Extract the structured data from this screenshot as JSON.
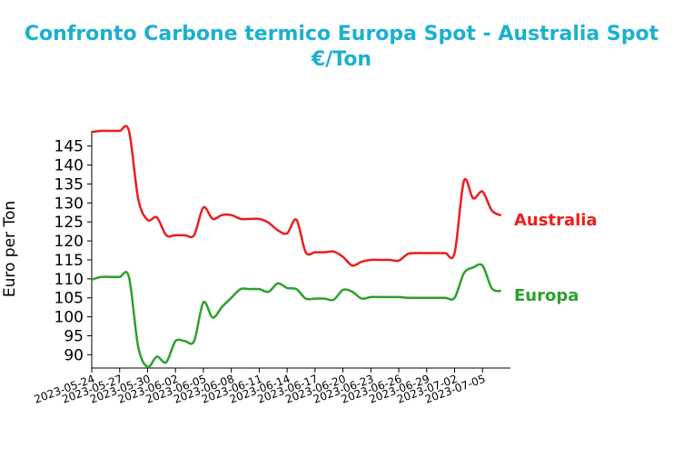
{
  "chart_data": {
    "type": "line",
    "title_line1": "Confronto Carbone termico Europa Spot - Australia Spot",
    "title_line2": "€/Ton",
    "xlabel": "",
    "ylabel": "Euro per Ton",
    "ylim": [
      86.5,
      149
    ],
    "yticks": [
      90,
      95,
      100,
      105,
      110,
      115,
      120,
      125,
      130,
      135,
      140,
      145
    ],
    "xlim": [
      "2023-05-24",
      "2023-07-08"
    ],
    "xticks": [
      "2023-05-24",
      "2023-05-27",
      "2023-05-30",
      "2023-06-02",
      "2023-06-05",
      "2023-06-08",
      "2023-06-11",
      "2023-06-14",
      "2023-06-17",
      "2023-06-20",
      "2023-06-23",
      "2023-06-26",
      "2023-06-29",
      "2023-07-02",
      "2023-07-05"
    ],
    "grid": false,
    "legend": "labels at line ends (right)",
    "series": [
      {
        "name": "Australia",
        "color": "#ee1c1c",
        "points": [
          [
            "2023-05-24",
            148.7
          ],
          [
            "2023-05-25",
            149.0
          ],
          [
            "2023-05-26",
            149.0
          ],
          [
            "2023-05-27",
            149.0
          ],
          [
            "2023-05-28",
            149.0
          ],
          [
            "2023-05-29",
            131.0
          ],
          [
            "2023-05-30",
            125.5
          ],
          [
            "2023-05-31",
            126.2
          ],
          [
            "2023-06-01",
            121.5
          ],
          [
            "2023-06-02",
            121.5
          ],
          [
            "2023-06-03",
            121.5
          ],
          [
            "2023-06-04",
            121.5
          ],
          [
            "2023-06-05",
            128.8
          ],
          [
            "2023-06-06",
            125.8
          ],
          [
            "2023-06-07",
            126.8
          ],
          [
            "2023-06-08",
            126.8
          ],
          [
            "2023-06-09",
            125.8
          ],
          [
            "2023-06-10",
            125.8
          ],
          [
            "2023-06-11",
            125.8
          ],
          [
            "2023-06-12",
            124.8
          ],
          [
            "2023-06-13",
            122.8
          ],
          [
            "2023-06-14",
            122.0
          ],
          [
            "2023-06-15",
            125.6
          ],
          [
            "2023-06-16",
            117.0
          ],
          [
            "2023-06-17",
            117.0
          ],
          [
            "2023-06-18",
            117.0
          ],
          [
            "2023-06-19",
            117.2
          ],
          [
            "2023-06-20",
            115.8
          ],
          [
            "2023-06-21",
            113.5
          ],
          [
            "2023-06-22",
            114.5
          ],
          [
            "2023-06-23",
            115.0
          ],
          [
            "2023-06-24",
            115.0
          ],
          [
            "2023-06-25",
            115.0
          ],
          [
            "2023-06-26",
            114.8
          ],
          [
            "2023-06-27",
            116.6
          ],
          [
            "2023-06-28",
            116.8
          ],
          [
            "2023-06-29",
            116.8
          ],
          [
            "2023-06-30",
            116.8
          ],
          [
            "2023-07-01",
            116.8
          ],
          [
            "2023-07-02",
            116.8
          ],
          [
            "2023-07-03",
            135.8
          ],
          [
            "2023-07-04",
            131.2
          ],
          [
            "2023-07-05",
            133.0
          ],
          [
            "2023-07-06",
            128.0
          ],
          [
            "2023-07-07",
            126.7
          ]
        ]
      },
      {
        "name": "Europa",
        "color": "#2ca02c",
        "points": [
          [
            "2023-05-24",
            109.8
          ],
          [
            "2023-05-25",
            110.5
          ],
          [
            "2023-05-26",
            110.5
          ],
          [
            "2023-05-27",
            110.5
          ],
          [
            "2023-05-28",
            110.5
          ],
          [
            "2023-05-29",
            92.0
          ],
          [
            "2023-05-30",
            86.8
          ],
          [
            "2023-05-31",
            89.5
          ],
          [
            "2023-06-01",
            88.0
          ],
          [
            "2023-06-02",
            93.6
          ],
          [
            "2023-06-03",
            93.6
          ],
          [
            "2023-06-04",
            93.6
          ],
          [
            "2023-06-05",
            103.8
          ],
          [
            "2023-06-06",
            99.8
          ],
          [
            "2023-06-07",
            102.6
          ],
          [
            "2023-06-08",
            105.0
          ],
          [
            "2023-06-09",
            107.3
          ],
          [
            "2023-06-10",
            107.3
          ],
          [
            "2023-06-11",
            107.3
          ],
          [
            "2023-06-12",
            106.6
          ],
          [
            "2023-06-13",
            108.8
          ],
          [
            "2023-06-14",
            107.6
          ],
          [
            "2023-06-15",
            107.3
          ],
          [
            "2023-06-16",
            104.8
          ],
          [
            "2023-06-17",
            104.8
          ],
          [
            "2023-06-18",
            104.8
          ],
          [
            "2023-06-19",
            104.5
          ],
          [
            "2023-06-20",
            107.1
          ],
          [
            "2023-06-21",
            106.6
          ],
          [
            "2023-06-22",
            104.8
          ],
          [
            "2023-06-23",
            105.2
          ],
          [
            "2023-06-24",
            105.2
          ],
          [
            "2023-06-25",
            105.2
          ],
          [
            "2023-06-26",
            105.2
          ],
          [
            "2023-06-27",
            105.0
          ],
          [
            "2023-06-28",
            105.0
          ],
          [
            "2023-06-29",
            105.0
          ],
          [
            "2023-06-30",
            105.0
          ],
          [
            "2023-07-01",
            105.0
          ],
          [
            "2023-07-02",
            105.0
          ],
          [
            "2023-07-03",
            111.5
          ],
          [
            "2023-07-04",
            113.0
          ],
          [
            "2023-07-05",
            113.5
          ],
          [
            "2023-07-06",
            107.5
          ],
          [
            "2023-07-07",
            106.8
          ]
        ]
      }
    ]
  }
}
